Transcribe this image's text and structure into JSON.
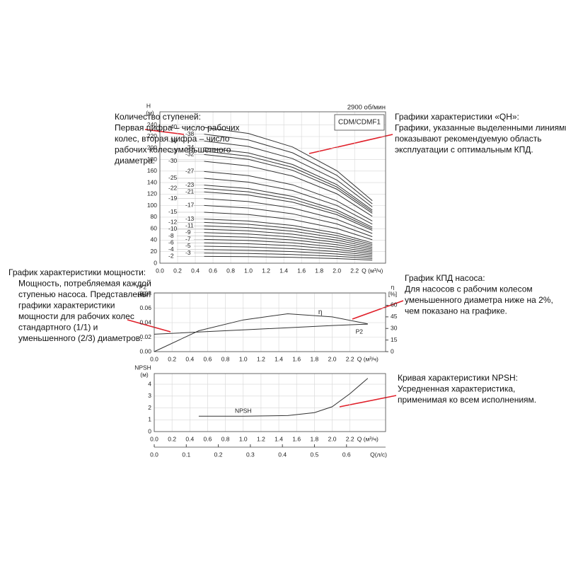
{
  "chart_data": [
    {
      "type": "line",
      "title": "2900 об/мин",
      "model": "CDM/CDMF1",
      "ylabel": "H",
      "yunit": "(м)",
      "xlabel": "Q (м³/ч)",
      "xlim": [
        0,
        2.55
      ],
      "ylim": [
        0,
        263
      ],
      "grid": true,
      "xticks": [
        {
          "value": 0,
          "label": "0.0"
        },
        0.2,
        0.4,
        0.6,
        0.8,
        {
          "value": 1,
          "label": "1.0"
        },
        1.2,
        1.4,
        1.6,
        1.8,
        {
          "value": 2,
          "label": "2.0"
        },
        2.2
      ],
      "yticks": [
        0,
        20,
        40,
        60,
        80,
        100,
        120,
        140,
        160,
        180,
        200,
        220,
        240
      ],
      "x": [
        0.5,
        1.0,
        1.5,
        2.0,
        2.4
      ],
      "series": [
        {
          "name": "-40",
          "color": "#333",
          "values": [
            236,
            225.4,
            201.8,
            160.5,
            108.6
          ]
        },
        {
          "name": "-38",
          "color": "#333",
          "values": [
            224.2,
            214.1,
            191.7,
            152.5,
            103.1
          ]
        },
        {
          "name": "-36",
          "color": "#333",
          "values": [
            212.4,
            202.8,
            181.6,
            144.4,
            97.7
          ]
        },
        {
          "name": "-34",
          "color": "#333",
          "values": [
            200.6,
            191.6,
            171.5,
            136.4,
            92.3
          ]
        },
        {
          "name": "-33",
          "color": "#333",
          "values": [
            194.7,
            185.9,
            166.5,
            132.4,
            89.6
          ]
        },
        {
          "name": "-32",
          "color": "#333",
          "values": [
            188.8,
            180.3,
            161.4,
            128.4,
            86.8
          ]
        },
        {
          "name": "-30",
          "color": "#333",
          "values": [
            177,
            169,
            151.3,
            120.4,
            81.4
          ]
        },
        {
          "name": "-27",
          "color": "#333",
          "values": [
            159.3,
            152.1,
            136.2,
            108.3,
            73.3
          ]
        },
        {
          "name": "-25",
          "color": "#333",
          "values": [
            147.5,
            140.9,
            126.1,
            100.3,
            67.9
          ]
        },
        {
          "name": "-23",
          "color": "#333",
          "values": [
            135.7,
            129.6,
            116,
            92.3,
            62.4
          ]
        },
        {
          "name": "-22",
          "color": "#333",
          "values": [
            129.8,
            124,
            111,
            88.3,
            59.7
          ]
        },
        {
          "name": "-21",
          "color": "#333",
          "values": [
            123.9,
            118.3,
            105.9,
            84.3,
            57
          ]
        },
        {
          "name": "-19",
          "color": "#333",
          "values": [
            112.1,
            107.1,
            95.8,
            76.2,
            51.6
          ]
        },
        {
          "name": "-17",
          "color": "#333",
          "values": [
            100.3,
            95.8,
            85.8,
            68.2,
            46.1
          ]
        },
        {
          "name": "-15",
          "color": "#333",
          "values": [
            88.5,
            84.5,
            75.7,
            60.2,
            40.7
          ]
        },
        {
          "name": "-13",
          "color": "#333",
          "values": [
            76.7,
            73.2,
            65.6,
            52.2,
            35.3
          ]
        },
        {
          "name": "-12",
          "color": "#333",
          "values": [
            70.8,
            67.6,
            60.5,
            48.1,
            32.6
          ]
        },
        {
          "name": "-11",
          "color": "#333",
          "values": [
            64.9,
            62,
            55.5,
            44.1,
            29.9
          ]
        },
        {
          "name": "-10",
          "color": "#333",
          "values": [
            59,
            56.3,
            50.4,
            40.1,
            27.1
          ]
        },
        {
          "name": "-9",
          "color": "#333",
          "values": [
            53.1,
            50.7,
            45.4,
            36.1,
            24.4
          ]
        },
        {
          "name": "-8",
          "color": "#333",
          "values": [
            47.2,
            45.1,
            40.4,
            32.1,
            21.7
          ]
        },
        {
          "name": "-7",
          "color": "#333",
          "values": [
            41.3,
            39.4,
            35.3,
            28.1,
            19
          ]
        },
        {
          "name": "-6",
          "color": "#333",
          "values": [
            35.4,
            33.8,
            30.3,
            24.1,
            16.3
          ]
        },
        {
          "name": "-5",
          "color": "#333",
          "values": [
            29.5,
            28.2,
            25.2,
            20.1,
            13.6
          ]
        },
        {
          "name": "-4",
          "color": "#333",
          "values": [
            23.6,
            22.5,
            20.2,
            16,
            10.9
          ]
        },
        {
          "name": "-3",
          "color": "#333",
          "values": [
            17.7,
            16.9,
            15.1,
            12,
            8.1
          ]
        },
        {
          "name": "-2",
          "color": "#333",
          "values": [
            11.8,
            11.3,
            10.1,
            8,
            5.4
          ]
        }
      ]
    },
    {
      "type": "line",
      "ylabel": "P2",
      "yunit": "[кВт]",
      "y2label": "η",
      "y2unit": "[%]",
      "xlabel": "Q (м³/ч)",
      "xlim": [
        0,
        2.6
      ],
      "ylim": [
        0,
        0.081
      ],
      "y2lim": [
        0,
        76
      ],
      "grid": true,
      "xticks": [
        {
          "value": 0,
          "label": "0.0"
        },
        0.2,
        0.4,
        0.6,
        0.8,
        {
          "value": 1,
          "label": "1.0"
        },
        1.2,
        1.4,
        1.6,
        1.8,
        {
          "value": 2,
          "label": "2.0"
        },
        2.2
      ],
      "yticks": [
        {
          "value": 0,
          "label": "0.00"
        },
        0.02,
        0.04,
        0.06,
        0.08
      ],
      "y2ticks": [
        0,
        15,
        30,
        45,
        60
      ],
      "x": [
        0,
        0.5,
        1.0,
        1.5,
        2.0,
        2.4
      ],
      "series": [
        {
          "name": "η",
          "color": "#333",
          "axis": "y2",
          "values": [
            0,
            27,
            41,
            49,
            45,
            36
          ]
        },
        {
          "name": "P2",
          "color": "#333",
          "values": [
            0.024,
            0.027,
            0.03,
            0.033,
            0.036,
            0.038
          ]
        }
      ]
    },
    {
      "type": "line",
      "ylabel": "NPSH",
      "yunit": "(м)",
      "xlabel": "Q (м³/ч)",
      "x2label": "Q(л/с)",
      "xlim": [
        0,
        2.6
      ],
      "ylim": [
        0,
        4.9
      ],
      "x2lim": [
        0,
        0.722
      ],
      "grid": true,
      "xticks": [
        {
          "value": 0,
          "label": "0.0"
        },
        0.2,
        0.4,
        0.6,
        0.8,
        {
          "value": 1,
          "label": "1.0"
        },
        1.2,
        1.4,
        1.6,
        1.8,
        {
          "value": 2,
          "label": "2.0"
        },
        2.2
      ],
      "yticks": [
        0,
        1,
        2,
        3,
        4
      ],
      "x2ticks": [
        {
          "value": 0,
          "label": "0.0"
        },
        0.1,
        0.2,
        0.3,
        0.4,
        0.5,
        0.6
      ],
      "x": [
        0.5,
        1.0,
        1.5,
        1.8,
        2.0,
        2.2,
        2.4
      ],
      "series": [
        {
          "name": "NPSH",
          "color": "#333",
          "values": [
            1.3,
            1.3,
            1.35,
            1.6,
            2.1,
            3.2,
            4.5
          ]
        }
      ]
    }
  ],
  "annotations": [
    {
      "lines": [
        "Количество ступеней:",
        "Первая цифра – число рабочих",
        "колес, вторая цифра – число",
        "рабочих колес уменьшенного",
        "диаметра."
      ]
    },
    {
      "lines": [
        "Графики характеристики «QH»:",
        "Графики, указанные выделенными линиями,",
        "показывают рекомендуемую область",
        "эксплуатации с оптимальным КПД."
      ]
    },
    {
      "lines": [
        "График характеристики мощности:",
        "Мощность, потребляемая каждой",
        "ступенью насоса. Представлены",
        "графики характеристики",
        "мощности для рабочих колес",
        "стандартного (1/1) и",
        "уменьшенного (2/3) диаметров."
      ]
    },
    {
      "lines": [
        "График КПД насоса:",
        "Для насосов с рабочим колесом",
        "уменьшенного диаметра ниже на 2%,",
        "чем показано на графике."
      ]
    },
    {
      "lines": [
        "Кривая характеристики NPSH:",
        "Усредненная характеристика,",
        "применимая ко всем исполнениям."
      ]
    }
  ]
}
